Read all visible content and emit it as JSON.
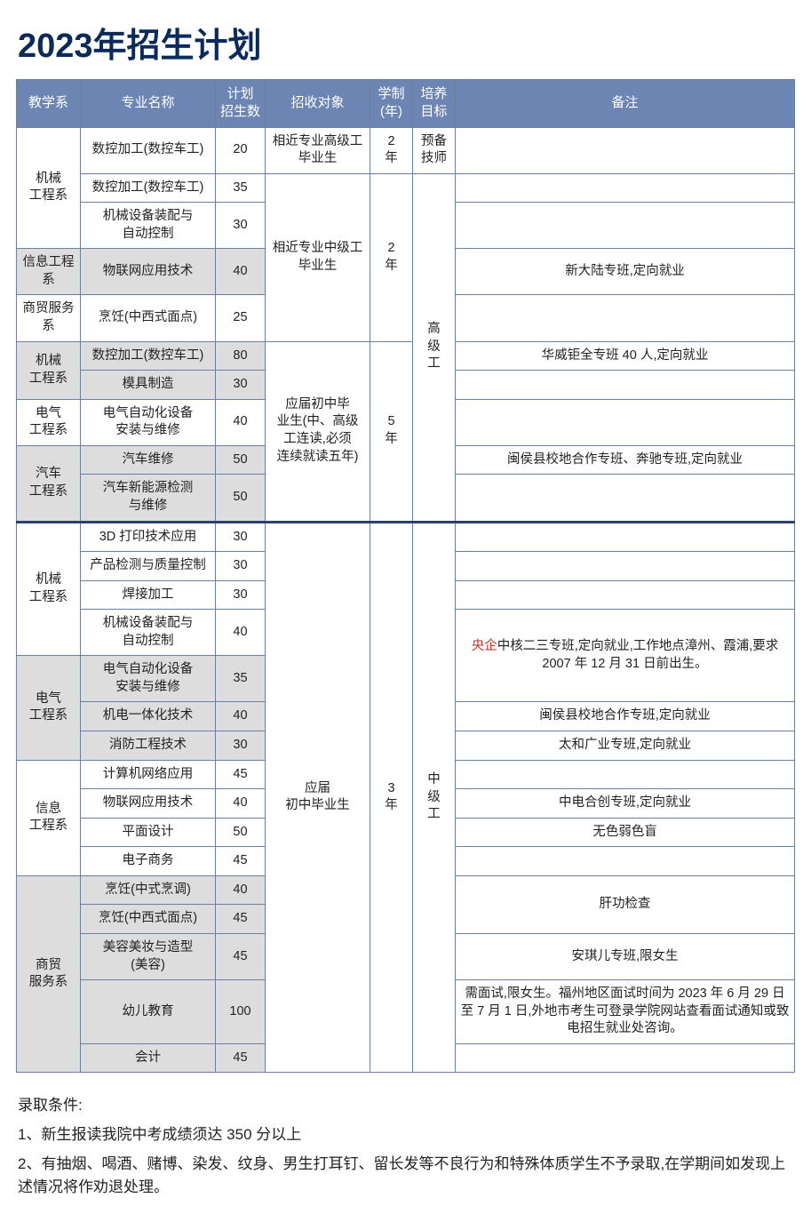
{
  "title": "2023年招生计划",
  "headers": {
    "dept": "教学系",
    "major": "专业名称",
    "num": "计划\n招生数",
    "target": "招收对象",
    "years": "学制\n(年)",
    "goal": "培养\n目标",
    "note": "备注"
  },
  "targetA": "相近专业高级工\n毕业生",
  "targetB": "相近专业中级工\n毕业生",
  "targetC": "应届初中毕\n业生(中、高级\n工连读,必须\n连续就读五年)",
  "targetD": "应届\n初中毕业生",
  "yearsA": "2\n年",
  "yearsB": "2\n年",
  "yearsC": "5\n年",
  "yearsD": "3\n年",
  "goalA": "预备\n技师",
  "goalB": "高\n级\n工",
  "goalC": "中\n级\n工",
  "rows": {
    "r1": {
      "dept": "机械\n工程系",
      "major": "数控加工(数控车工)",
      "num": "20",
      "note": ""
    },
    "r2": {
      "major": "数控加工(数控车工)",
      "num": "35",
      "note": ""
    },
    "r3": {
      "major": "机械设备装配与\n自动控制",
      "num": "30",
      "note": ""
    },
    "r4": {
      "dept": "信息工程系",
      "major": "物联网应用技术",
      "num": "40",
      "note": "新大陆专班,定向就业"
    },
    "r5": {
      "dept": "商贸服务系",
      "major": "烹饪(中西式面点)",
      "num": "25",
      "note": ""
    },
    "r6": {
      "dept": "机械\n工程系",
      "major": "数控加工(数控车工)",
      "num": "80",
      "note": "华威钜全专班 40 人,定向就业"
    },
    "r7": {
      "major": "模具制造",
      "num": "30",
      "note": ""
    },
    "r8": {
      "dept": "电气\n工程系",
      "major": "电气自动化设备\n安装与维修",
      "num": "40",
      "note": ""
    },
    "r9": {
      "dept": "汽车\n工程系",
      "major": "汽车维修",
      "num": "50",
      "note": "闽侯县校地合作专班、奔驰专班,定向就业"
    },
    "r10": {
      "major": "汽车新能源检测\n与维修",
      "num": "50",
      "note": ""
    },
    "r11": {
      "dept": "机械\n工程系",
      "major": "3D 打印技术应用",
      "num": "30",
      "note": ""
    },
    "r12": {
      "major": "产品检测与质量控制",
      "num": "30",
      "note": ""
    },
    "r13": {
      "major": "焊接加工",
      "num": "30",
      "note": ""
    },
    "r14": {
      "major": "机械设备装配与\n自动控制",
      "num": "40",
      "noteHi": "央企",
      "note": "中核二三专班,定向就业,工作地点漳州、霞浦,要求 2007 年 12 月 31 日前出生。"
    },
    "r15": {
      "dept": "电气\n工程系",
      "major": "电气自动化设备\n安装与维修",
      "num": "35"
    },
    "r16": {
      "major": "机电一体化技术",
      "num": "40",
      "note": "闽侯县校地合作专班,定向就业"
    },
    "r17": {
      "major": "消防工程技术",
      "num": "30",
      "note": "太和广业专班,定向就业"
    },
    "r18": {
      "dept": "信息\n工程系",
      "major": "计算机网络应用",
      "num": "45",
      "note": ""
    },
    "r19": {
      "major": "物联网应用技术",
      "num": "40",
      "note": "中电合创专班,定向就业"
    },
    "r20": {
      "major": "平面设计",
      "num": "50",
      "note": "无色弱色盲"
    },
    "r21": {
      "major": "电子商务",
      "num": "45",
      "note": ""
    },
    "r22": {
      "dept": "商贸\n服务系",
      "major": "烹饪(中式烹调)",
      "num": "40",
      "note": "肝功检查"
    },
    "r23": {
      "major": "烹饪(中西式面点)",
      "num": "45"
    },
    "r24": {
      "major": "美容美妆与造型\n(美容)",
      "num": "45",
      "note": "安琪儿专班,限女生"
    },
    "r25": {
      "major": "幼儿教育",
      "num": "100",
      "note": "需面试,限女生。福州地区面试时间为 2023 年 6 月 29 日至 7 月 1 日,外地市考生可登录学院网站查看面试通知或致电招生就业处咨询。"
    },
    "r26": {
      "major": "会计",
      "num": "45",
      "note": ""
    }
  },
  "conditions": {
    "title": "录取条件:",
    "c1": "1、新生报读我院中考成绩须达 350 分以上",
    "c2": "2、有抽烟、喝酒、赌博、染发、纹身、男生打耳钉、留长发等不良行为和特殊体质学生不予录取,在学期间如发现上述情况将作劝退处理。"
  }
}
